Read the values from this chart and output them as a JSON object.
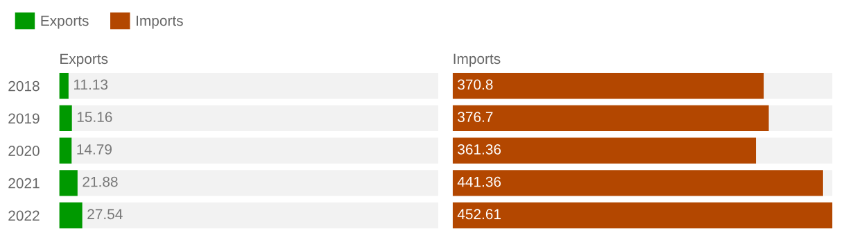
{
  "chart_data": [
    {
      "type": "bar",
      "orientation": "horizontal",
      "title": "Exports",
      "categories": [
        "2018",
        "2019",
        "2020",
        "2021",
        "2022"
      ],
      "series": [
        {
          "name": "Exports",
          "color": "#009900",
          "values": [
            11.13,
            15.16,
            14.79,
            21.88,
            27.54
          ]
        }
      ],
      "data_labels": true,
      "legend": "top left",
      "tick_labels": "y",
      "grid": false
    },
    {
      "type": "bar",
      "orientation": "horizontal",
      "title": "Imports",
      "categories": [
        "2018",
        "2019",
        "2020",
        "2021",
        "2022"
      ],
      "series": [
        {
          "name": "Imports",
          "color": "#b34700",
          "values": [
            370.8,
            376.7,
            361.36,
            441.36,
            452.61
          ]
        }
      ],
      "data_labels": true,
      "legend": "top left",
      "tick_labels": false,
      "grid": false
    }
  ]
}
